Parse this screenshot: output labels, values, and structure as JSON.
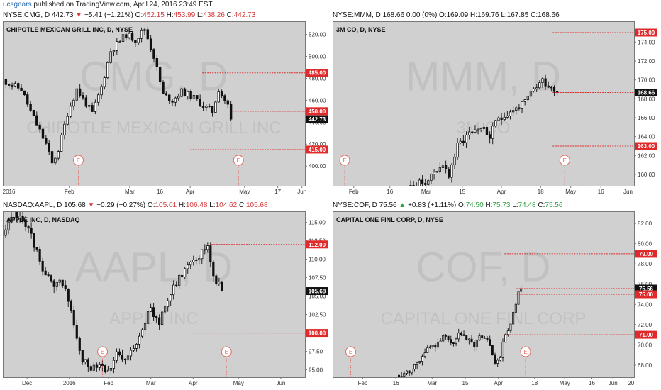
{
  "topbar": {
    "user": "ucsgears",
    "text": " published on TradingView.com, April 24, 2016 23:49 EST"
  },
  "chart_data": [
    {
      "type": "candlestick",
      "symbol": "NYSE:CMG",
      "header": {
        "prefix": "NYSE:CMG, D 442.73",
        "arrow": "▼",
        "arrow_dir": "down",
        "change": "−5.41 (−1.21%)",
        "o": "452.15",
        "h": "453.99",
        "l": "438.26",
        "c": "442.73"
      },
      "title": "CHIPOTLE MEXICAN GRILL INC, D, NYSE",
      "watermark": {
        "ticker": "CMG, D",
        "name": "CHIPOTLE MEXICAN GRILL INC"
      },
      "ylim": [
        382,
        532
      ],
      "yticks": [
        "520.00",
        "500.00",
        "480.00",
        "460.00",
        "440.00",
        "420.00",
        "400.00"
      ],
      "ytick_values": [
        520,
        500,
        480,
        460,
        440,
        420,
        400
      ],
      "xticks": [
        "2016",
        "Feb",
        "Mar",
        "16",
        "Apr",
        "May",
        "17",
        "Jun"
      ],
      "xtick_pos": [
        0.02,
        0.22,
        0.42,
        0.52,
        0.62,
        0.8,
        0.91,
        0.99
      ],
      "levels": [
        {
          "label": "485.00",
          "value": 485,
          "type": "resistance",
          "x_from": 0.66
        },
        {
          "label": "450.00",
          "value": 450,
          "type": "resistance",
          "x_from": 0.76
        },
        {
          "label": "415.00",
          "value": 415,
          "type": "support",
          "x_from": 0.62
        }
      ],
      "current": {
        "label": "442.73",
        "value": 442.73
      },
      "earnings": [
        {
          "label": "E",
          "x": 0.25
        },
        {
          "label": "E",
          "x": 0.78
        }
      ],
      "candles": {
        "n": 75,
        "end_x": 0.755,
        "anchors": [
          [
            0,
            478
          ],
          [
            6,
            470
          ],
          [
            9,
            450
          ],
          [
            14,
            420
          ],
          [
            16,
            402
          ],
          [
            18,
            415
          ],
          [
            21,
            448
          ],
          [
            24,
            470
          ],
          [
            29,
            448
          ],
          [
            32,
            472
          ],
          [
            35,
            505
          ],
          [
            40,
            520
          ],
          [
            43,
            515
          ],
          [
            46,
            525
          ],
          [
            49,
            500
          ],
          [
            52,
            465
          ],
          [
            55,
            460
          ],
          [
            58,
            468
          ],
          [
            62,
            462
          ],
          [
            65,
            455
          ],
          [
            68,
            450
          ],
          [
            70,
            470
          ],
          [
            73,
            455
          ],
          [
            74,
            442.73
          ]
        ],
        "vol": 6,
        "seed": 11
      }
    },
    {
      "type": "candlestick",
      "symbol": "NYSE:MMM",
      "header": {
        "prefix": "NYSE:MMM, D 168.66 0.00 (0%)",
        "arrow": "",
        "arrow_dir": "none",
        "change": "",
        "o": "169.09",
        "h": "169.76",
        "l": "167.85",
        "c": "168.66"
      },
      "title": "3M CO, D, NYSE",
      "watermark": {
        "ticker": "MMM, D",
        "name": "3M CO"
      },
      "ylim": [
        158.8,
        176.2
      ],
      "yticks": [
        "174.00",
        "172.00",
        "170.00",
        "168.00",
        "166.00",
        "164.00",
        "162.00",
        "160.00"
      ],
      "ytick_values": [
        174,
        172,
        170,
        168,
        166,
        164,
        162,
        160
      ],
      "xticks": [
        "Feb",
        "16",
        "Mar",
        "15",
        "Apr",
        "18",
        "May",
        "16",
        "Jun"
      ],
      "xtick_pos": [
        0.07,
        0.19,
        0.31,
        0.43,
        0.56,
        0.69,
        0.79,
        0.89,
        0.98
      ],
      "levels": [
        {
          "label": "175.00",
          "value": 175,
          "type": "target",
          "x_from": 0.73
        },
        {
          "label": "168.66",
          "value": 168.66,
          "type": "current",
          "x_from": 0.73
        },
        {
          "label": "163.00",
          "value": 163,
          "type": "support",
          "x_from": 0.73
        }
      ],
      "current": {
        "label": "168.66",
        "value": 168.66
      },
      "earnings": [
        {
          "label": "E",
          "x": 0.04
        },
        {
          "label": "E",
          "x": 0.77
        }
      ],
      "candles": {
        "n": 55,
        "start_x": 0.22,
        "end_x": 0.745,
        "anchors": [
          [
            0,
            158
          ],
          [
            6,
            158.8
          ],
          [
            10,
            159.5
          ],
          [
            14,
            161
          ],
          [
            17,
            160
          ],
          [
            20,
            163
          ],
          [
            24,
            164.5
          ],
          [
            28,
            165
          ],
          [
            31,
            164
          ],
          [
            34,
            166
          ],
          [
            37,
            166.5
          ],
          [
            40,
            167
          ],
          [
            43,
            167.5
          ],
          [
            46,
            169
          ],
          [
            49,
            170
          ],
          [
            51,
            169.5
          ],
          [
            54,
            168.66
          ]
        ],
        "vol": 0.9,
        "seed": 23
      }
    },
    {
      "type": "candlestick",
      "symbol": "NASDAQ:AAPL",
      "header": {
        "prefix": "NASDAQ:AAPL, D 105.68",
        "arrow": "▼",
        "arrow_dir": "down",
        "change": "−0.29 (−0.27%)",
        "o": "105.01",
        "h": "106.48",
        "l": "104.62",
        "c": "105.68"
      },
      "title": "APPLE INC, D, NASDAQ",
      "watermark": {
        "ticker": "AAPL, D",
        "name": "APPLE INC"
      },
      "ylim": [
        94,
        116.5
      ],
      "yticks": [
        "115.00",
        "112.50",
        "110.00",
        "107.50",
        "105.00",
        "102.50",
        "100.00",
        "97.50",
        "95.00"
      ],
      "ytick_values": [
        115,
        112.5,
        110,
        107.5,
        105,
        102.5,
        100,
        97.5,
        95
      ],
      "xticks": [
        "Dec",
        "2016",
        "Feb",
        "Mar",
        "Apr",
        "May",
        "Jun"
      ],
      "xtick_pos": [
        0.08,
        0.22,
        0.35,
        0.49,
        0.63,
        0.78,
        0.92
      ],
      "levels": [
        {
          "label": "112.00",
          "value": 112,
          "type": "target",
          "x_from": 0.69
        },
        {
          "label": "105.68",
          "value": 105.68,
          "type": "current",
          "x_from": 0.72
        },
        {
          "label": "100.00",
          "value": 100,
          "type": "support",
          "x_from": 0.62
        }
      ],
      "current": {
        "label": "105.68",
        "value": 105.68
      },
      "earnings": [
        {
          "label": "E",
          "x": 0.33
        },
        {
          "label": "E",
          "x": 0.74
        }
      ],
      "candles": {
        "n": 78,
        "start_x": 0.0,
        "end_x": 0.725,
        "anchors": [
          [
            0,
            113
          ],
          [
            4,
            116
          ],
          [
            8,
            115
          ],
          [
            12,
            111
          ],
          [
            15,
            108
          ],
          [
            18,
            106
          ],
          [
            21,
            107
          ],
          [
            24,
            103
          ],
          [
            26,
            99
          ],
          [
            28,
            96
          ],
          [
            31,
            95.5
          ],
          [
            34,
            96
          ],
          [
            37,
            95
          ],
          [
            40,
            97
          ],
          [
            43,
            96
          ],
          [
            46,
            98
          ],
          [
            49,
            101
          ],
          [
            52,
            103
          ],
          [
            55,
            101.5
          ],
          [
            57,
            104
          ],
          [
            60,
            106
          ],
          [
            63,
            108
          ],
          [
            66,
            110
          ],
          [
            69,
            110.5
          ],
          [
            72,
            112
          ],
          [
            74,
            108
          ],
          [
            77,
            105.68
          ]
        ],
        "vol": 1.2,
        "seed": 37
      }
    },
    {
      "type": "candlestick",
      "symbol": "NYSE:COF",
      "header": {
        "prefix": "NYSE:COF, D 75.56",
        "arrow": "▲",
        "arrow_dir": "up",
        "change": "+0.83 (+1.11%)",
        "o": "74.50",
        "h": "75.73",
        "l": "74.48",
        "c": "75.56"
      },
      "title": "CAPITAL ONE FINL CORP, D, NYSE",
      "watermark": {
        "ticker": "COF, D",
        "name": "CAPITAL ONE FINL CORP"
      },
      "ylim": [
        66.8,
        83.2
      ],
      "yticks": [
        "82.00",
        "80.00",
        "78.00",
        "76.00",
        "74.00",
        "72.00",
        "70.00",
        "68.00"
      ],
      "ytick_values": [
        82,
        80,
        78,
        76,
        74,
        72,
        70,
        68
      ],
      "xticks": [
        "Feb",
        "16",
        "Mar",
        "15",
        "Apr",
        "18",
        "May",
        "16",
        "Jun",
        "20"
      ],
      "xtick_pos": [
        0.1,
        0.21,
        0.33,
        0.44,
        0.55,
        0.67,
        0.77,
        0.86,
        0.93,
        0.99
      ],
      "levels": [
        {
          "label": "79.00",
          "value": 79,
          "type": "target",
          "x_from": 0.57
        },
        {
          "label": "75.56",
          "value": 75.56,
          "type": "current",
          "x_from": 0.61
        },
        {
          "label": "75.00",
          "value": 75,
          "type": "resistance",
          "x_from": 0.61
        },
        {
          "label": "71.00",
          "value": 71,
          "type": "support",
          "x_from": 0.57
        }
      ],
      "current": {
        "label": "75.56",
        "value": 75.56
      },
      "earnings": [
        {
          "label": "E",
          "x": 0.06
        },
        {
          "label": "E",
          "x": 0.64
        }
      ],
      "candles": {
        "n": 48,
        "start_x": 0.22,
        "end_x": 0.625,
        "anchors": [
          [
            0,
            67
          ],
          [
            4,
            67.5
          ],
          [
            8,
            68.5
          ],
          [
            11,
            69.5
          ],
          [
            14,
            70
          ],
          [
            17,
            71
          ],
          [
            20,
            70
          ],
          [
            23,
            71
          ],
          [
            26,
            70.5
          ],
          [
            29,
            70
          ],
          [
            32,
            71
          ],
          [
            35,
            70
          ],
          [
            37,
            68
          ],
          [
            39,
            69
          ],
          [
            41,
            71
          ],
          [
            43,
            72
          ],
          [
            45,
            74
          ],
          [
            46,
            75
          ],
          [
            47,
            75.56
          ]
        ],
        "vol": 0.6,
        "seed": 53
      }
    }
  ]
}
